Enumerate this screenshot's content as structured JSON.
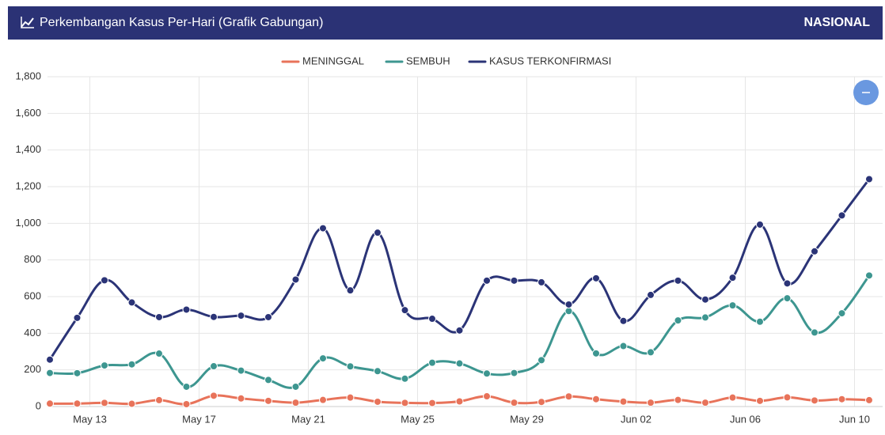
{
  "header": {
    "title": "Perkembangan Kasus Per-Hari (Grafik Gabungan)",
    "region": "NASIONAL"
  },
  "chart_data": {
    "type": "line",
    "categories": [
      null,
      "May 13",
      null,
      null,
      null,
      "May 17",
      null,
      null,
      null,
      "May 21",
      null,
      null,
      null,
      "May 25",
      null,
      null,
      null,
      "May 29",
      null,
      null,
      null,
      "Jun 02",
      null,
      null,
      null,
      "Jun 06",
      null,
      null,
      null,
      "Jun 10",
      null
    ],
    "series": [
      {
        "name": "MENINGGAL",
        "color": "#e8735a",
        "values": [
          16,
          16,
          20,
          15,
          35,
          13,
          59,
          44,
          31,
          21,
          36,
          49,
          26,
          20,
          19,
          28,
          56,
          21,
          25,
          55,
          40,
          27,
          21,
          36,
          21,
          49,
          31,
          50,
          33,
          40,
          35
        ]
      },
      {
        "name": "SEMBUH",
        "color": "#3d9690",
        "values": [
          183,
          182,
          224,
          230,
          289,
          108,
          220,
          196,
          145,
          108,
          263,
          219,
          193,
          152,
          239,
          235,
          180,
          183,
          253,
          521,
          290,
          330,
          296,
          470,
          486,
          552,
          463,
          591,
          404,
          509,
          715
        ]
      },
      {
        "name": "KASUS TERKONFIRMASI",
        "color": "#2b3477",
        "values": [
          256,
          484,
          689,
          568,
          488,
          529,
          489,
          496,
          488,
          693,
          973,
          634,
          949,
          526,
          479,
          415,
          687,
          687,
          678,
          557,
          700,
          467,
          609,
          687,
          584,
          703,
          993,
          672,
          847,
          1043,
          1241
        ]
      }
    ],
    "ylim": [
      0,
      1800
    ],
    "yticks": [
      0,
      200,
      400,
      600,
      800,
      {
        "value": 1000,
        "label": "1,000"
      },
      {
        "value": 1200,
        "label": "1,200"
      },
      {
        "value": 1400,
        "label": "1,400"
      },
      {
        "value": 1600,
        "label": "1,600"
      },
      {
        "value": 1800,
        "label": "1,800"
      }
    ],
    "grid": true,
    "legend": "top"
  }
}
